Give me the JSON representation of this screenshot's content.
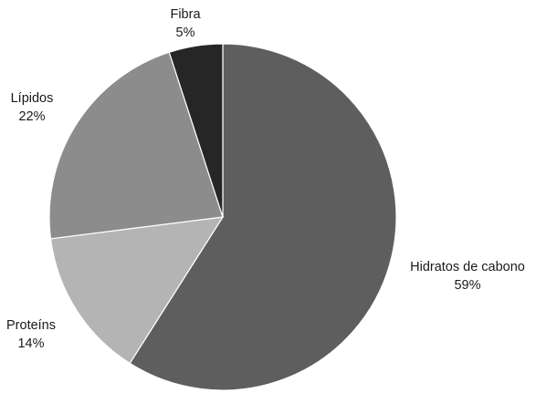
{
  "chart_data": {
    "type": "pie",
    "title": "",
    "slices": [
      {
        "label": "Hidratos de cabono",
        "value": 59,
        "display": "59%",
        "color": "#5e5e5e"
      },
      {
        "label": "Proteíns",
        "value": 14,
        "display": "14%",
        "color": "#b4b4b4"
      },
      {
        "label": "Lípidos",
        "value": 22,
        "display": "22%",
        "color": "#8c8c8c"
      },
      {
        "label": "Fibra",
        "value": 5,
        "display": "5%",
        "color": "#262626"
      }
    ],
    "start": "top",
    "direction": "clockwise",
    "legend": "none",
    "labels": "outside"
  }
}
